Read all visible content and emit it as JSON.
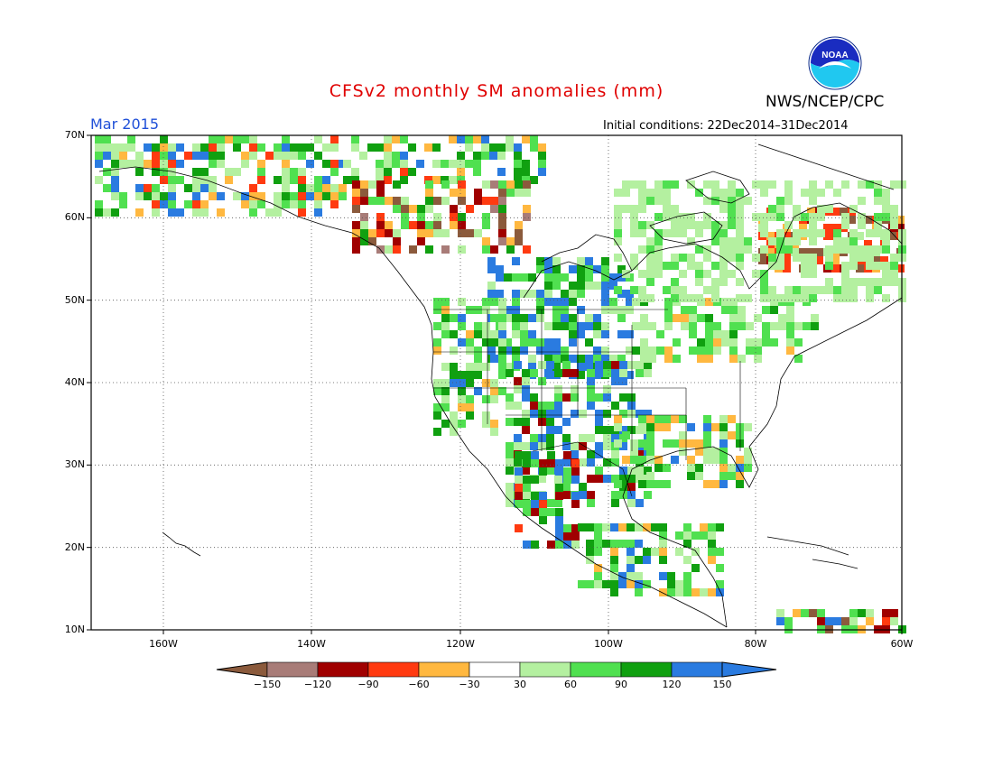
{
  "title": "CFSv2 monthly SM anomalies (mm)",
  "org": "NWS/NCEP/CPC",
  "logo_text": "NOAA",
  "month": "Mar 2015",
  "initial_conditions": "Initial conditions: 22Dec2014–31Dec2014",
  "map": {
    "lat_labels": [
      "70N",
      "60N",
      "50N",
      "40N",
      "30N",
      "20N",
      "10N"
    ],
    "lon_labels": [
      "160W",
      "140W",
      "120W",
      "100W",
      "80W",
      "60W"
    ]
  },
  "legend": {
    "ticks": [
      "−150",
      "−120",
      "−90",
      "−60",
      "−30",
      "30",
      "60",
      "90",
      "120",
      "150"
    ],
    "colors": [
      "#8b5a3c",
      "#a87c78",
      "#a00000",
      "#ff3a10",
      "#ffb840",
      "#ffffff",
      "#b4f0a0",
      "#50e050",
      "#10a010",
      "#2a7be0",
      "#2a7be0"
    ]
  },
  "colors": {
    "title": "#e00000",
    "month": "#2050d8"
  }
}
